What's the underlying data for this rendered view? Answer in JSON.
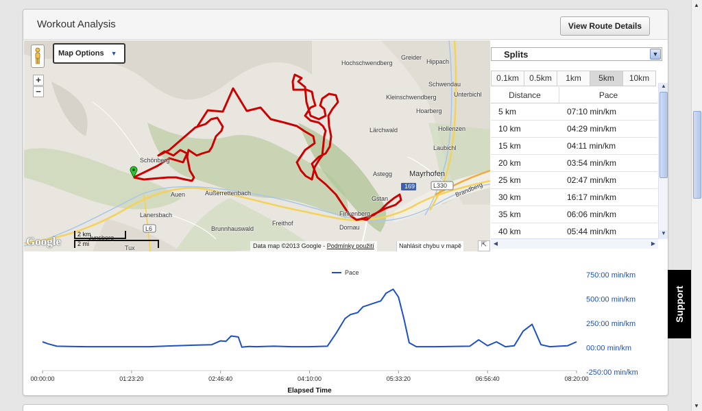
{
  "panel": {
    "title": "Workout Analysis",
    "view_route_label": "View Route Details"
  },
  "map": {
    "options_label": "Map Options",
    "zoom_in": "+",
    "zoom_out": "−",
    "attribution": "Data map ©2013 Google -",
    "terms_link": "Podmínky použití",
    "report_label": "Nahlásit chybu v mapě",
    "logo": "Google",
    "scale_km": "2 km",
    "scale_mi": "2 mi",
    "places": {
      "hochschwendberg": "Hochschwendberg",
      "greider": "Greider",
      "hippach": "Hippach",
      "schwendau": "Schwendau",
      "unterbichl": "Unterbichl",
      "kleinschwendberg": "Kleinschwendberg",
      "hoarberg": "Hoarberg",
      "larchwald": "Lärchwald",
      "hollenzen": "Hollenzen",
      "laubichl": "Laubichl",
      "astegg": "Astegg",
      "mayrhofen": "Mayrhofen",
      "schonberg": "Schönberg",
      "auen": "Auen",
      "ausserrettenbach": "Außerrettenbach",
      "lanersbach": "Lanersbach",
      "brunnhauswald": "Brunnhauswald",
      "freithof": "Freithof",
      "dornau": "Dornau",
      "finkenberg": "Finkenberg",
      "gstan": "Gstan",
      "junsberg": "Junsberg",
      "tux": "Tux",
      "brandberg": "Brandberg",
      "road_169": "169",
      "road_l330": "L330",
      "road_l6": "L6"
    }
  },
  "splits": {
    "select_label": "Splits",
    "tabs": [
      {
        "label": "0.1km",
        "active": false
      },
      {
        "label": "0.5km",
        "active": false
      },
      {
        "label": "1km",
        "active": false
      },
      {
        "label": "5km",
        "active": true
      },
      {
        "label": "10km",
        "active": false
      }
    ],
    "columns": [
      "Distance",
      "Pace"
    ],
    "rows": [
      {
        "distance": "5 km",
        "pace": "07:10 min/km"
      },
      {
        "distance": "10 km",
        "pace": "04:29 min/km"
      },
      {
        "distance": "15 km",
        "pace": "04:11 min/km"
      },
      {
        "distance": "20 km",
        "pace": "03:54 min/km"
      },
      {
        "distance": "25 km",
        "pace": "02:47 min/km"
      },
      {
        "distance": "30 km",
        "pace": "16:17 min/km"
      },
      {
        "distance": "35 km",
        "pace": "06:06 min/km"
      },
      {
        "distance": "40 km",
        "pace": "05:44 min/km"
      }
    ]
  },
  "chart_data": {
    "type": "line",
    "title": "",
    "xlabel": "Elapsed Time",
    "ylabel": "",
    "legend": [
      "Pace"
    ],
    "legend_position": "top",
    "x_ticks": [
      "00:00:00",
      "01:23:20",
      "02:46:40",
      "04:10:00",
      "05:33:20",
      "06:56:40",
      "08:20:00"
    ],
    "y_ticks": [
      "-250:00 min/km",
      "00:00 min/km",
      "250:00 min/km",
      "500:00 min/km",
      "750:00 min/km"
    ],
    "ylim": [
      -250,
      750
    ],
    "xlim_seconds": [
      0,
      30000
    ],
    "series": [
      {
        "name": "Pace",
        "color": "#1a4fc9",
        "x_seconds": [
          0,
          300,
          800,
          1500,
          2500,
          4000,
          6000,
          7500,
          8500,
          9500,
          10000,
          10300,
          10600,
          11000,
          11200,
          11600,
          12000,
          13000,
          14000,
          15000,
          16000,
          16500,
          17000,
          17300,
          17700,
          18000,
          18500,
          19000,
          19300,
          19700,
          20000,
          20300,
          20600,
          21000,
          21500,
          22000,
          23000,
          24000,
          24500,
          25000,
          25500,
          26000,
          26500,
          27000,
          27500,
          28000,
          28500,
          29000,
          29500,
          30000
        ],
        "values": [
          60,
          40,
          15,
          12,
          10,
          10,
          10,
          20,
          25,
          30,
          70,
          65,
          120,
          110,
          5,
          12,
          10,
          15,
          10,
          10,
          15,
          150,
          300,
          340,
          360,
          420,
          450,
          480,
          560,
          600,
          520,
          300,
          50,
          10,
          10,
          10,
          12,
          15,
          80,
          20,
          60,
          10,
          20,
          170,
          240,
          30,
          10,
          15,
          20,
          60
        ]
      }
    ]
  },
  "page": {
    "support_label": "Support"
  },
  "colors": {
    "route": "#cc0000",
    "pace_line": "#1a4fc9",
    "axis_label": "#1a4fc9"
  }
}
